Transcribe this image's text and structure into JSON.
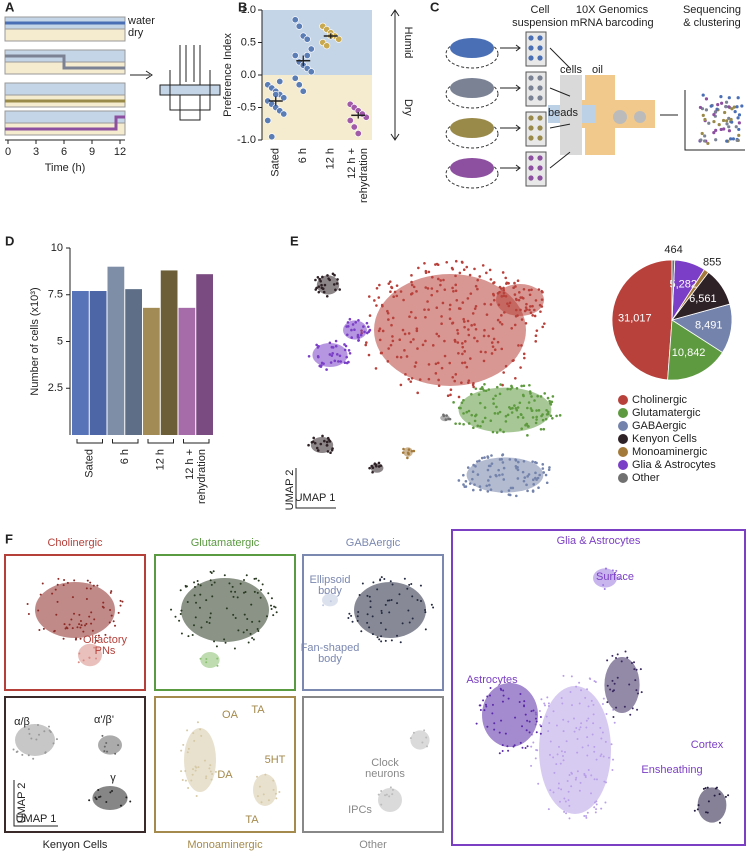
{
  "panel_labels": [
    "A",
    "B",
    "C",
    "D",
    "E",
    "F"
  ],
  "panel_a": {
    "legend": [
      "water",
      "dry"
    ],
    "xlabel": "Time (h)",
    "xlim": [
      0,
      12
    ],
    "xticks": [
      0,
      3,
      6,
      9,
      12
    ]
  },
  "panel_c": {
    "cell_suspension": [
      "Cell",
      "suspension"
    ],
    "barcoding": [
      "10X Genomics",
      "mRNA barcoding"
    ],
    "sequencing": [
      "Sequencing",
      "& clustering"
    ],
    "cells": "cells",
    "oil": "oil",
    "beads": "beads"
  },
  "chart_data": [
    {
      "type": "strip",
      "ylabel": "Preference Index",
      "categories": [
        "Sated",
        "6 h",
        "12 h",
        [
          "12 h +",
          "rehydration"
        ]
      ],
      "values": [
        [
          -0.15,
          -0.2,
          -0.25,
          -0.3,
          -0.35,
          -0.4,
          -0.45,
          -0.5,
          -0.55,
          -0.6,
          -0.7,
          -0.95,
          -0.3,
          -0.1
        ],
        [
          0.85,
          0.75,
          0.6,
          0.55,
          0.4,
          0.3,
          0.2,
          0.15,
          0.1,
          0.05,
          -0.05,
          -0.15,
          -0.25,
          0.3
        ],
        [
          0.75,
          0.7,
          0.65,
          0.6,
          0.55,
          0.5,
          0.45,
          0.6
        ],
        [
          -0.45,
          -0.5,
          -0.55,
          -0.6,
          -0.65,
          -0.7,
          -0.8,
          -0.9,
          -0.6
        ]
      ],
      "means": [
        -0.4,
        0.22,
        0.6,
        -0.62
      ],
      "errors": [
        0.07,
        0.08,
        0.04,
        0.05
      ],
      "colors": [
        "#5b7db5",
        "#5b7db5",
        "#c9a94f",
        "#a15aa8"
      ],
      "ylim": [
        -1,
        1
      ],
      "yticks": [
        {
          "value": -1,
          "label": "-1.0"
        },
        {
          "value": -0.5,
          "label": "-0.5"
        },
        {
          "value": 0,
          "label": "0.0"
        },
        {
          "value": 0.5,
          "label": "0.5"
        },
        {
          "value": 1,
          "label": "1.0"
        }
      ],
      "annotations": [
        "Humid",
        "Dry"
      ]
    },
    {
      "type": "bar",
      "ylabel": "Number of cells (x10³)",
      "groups": [
        "Sated",
        "6 h",
        "12 h",
        [
          "12 h +",
          "rehydration"
        ]
      ],
      "values": [
        7.7,
        7.7,
        9.0,
        7.8,
        6.8,
        8.8,
        6.8,
        8.6
      ],
      "colors": [
        "#5874b9",
        "#4d66a6",
        "#7d8ea6",
        "#5e6e87",
        "#a28b55",
        "#6c5f37",
        "#a56ca9",
        "#7a4b80"
      ],
      "ylim": [
        0,
        10
      ],
      "yticks": [
        2.5,
        5,
        7.5,
        10
      ]
    },
    {
      "type": "pie",
      "categories": [
        "Cholinergic",
        "Glutamatergic",
        "GABAergic",
        "Kenyon Cells",
        "Monoaminergic",
        "Glia & Astrocytes",
        "Other"
      ],
      "values": [
        31017,
        10842,
        8491,
        6561,
        855,
        5282,
        464
      ],
      "value_labels": [
        "31,017",
        "10,842",
        "8,491",
        "6,561",
        "855",
        "5,282",
        "464"
      ],
      "colors": [
        "#b8413b",
        "#5e9a3f",
        "#7483ab",
        "#2f2226",
        "#a47a3a",
        "#7a3fc6",
        "#707070"
      ]
    }
  ],
  "panel_e": {
    "axis_labels": [
      "UMAP 2",
      "UMAP 1"
    ]
  },
  "panel_f": {
    "panels": [
      {
        "title": "Cholinergic",
        "labels": [
          [
            "Olfactory",
            "PNs"
          ]
        ]
      },
      {
        "title": "Glutamatergic",
        "labels": []
      },
      {
        "title": "GABAergic",
        "labels": [
          [
            "Ellipsoid",
            "body"
          ],
          [
            "Fan-shaped",
            "body"
          ]
        ]
      },
      {
        "title": "Glia & Astrocytes",
        "labels": [
          [
            "Surface"
          ],
          [
            "Astrocytes"
          ],
          [
            "Cortex"
          ],
          [
            "Ensheathing"
          ]
        ]
      },
      {
        "title": "Kenyon Cells",
        "labels": [
          [
            "α/β"
          ],
          [
            "α'/β'"
          ],
          [
            "γ"
          ]
        ]
      },
      {
        "title": "Monoaminergic",
        "labels": [
          [
            "OA"
          ],
          [
            "TA"
          ],
          [
            "5HT"
          ],
          [
            "DA"
          ],
          [
            "TA"
          ]
        ]
      },
      {
        "title": "Other",
        "labels": [
          [
            "Clock",
            "neurons"
          ],
          [
            "IPCs"
          ]
        ]
      }
    ],
    "axis_labels": [
      "UMAP 2",
      "UMAP 1"
    ]
  }
}
